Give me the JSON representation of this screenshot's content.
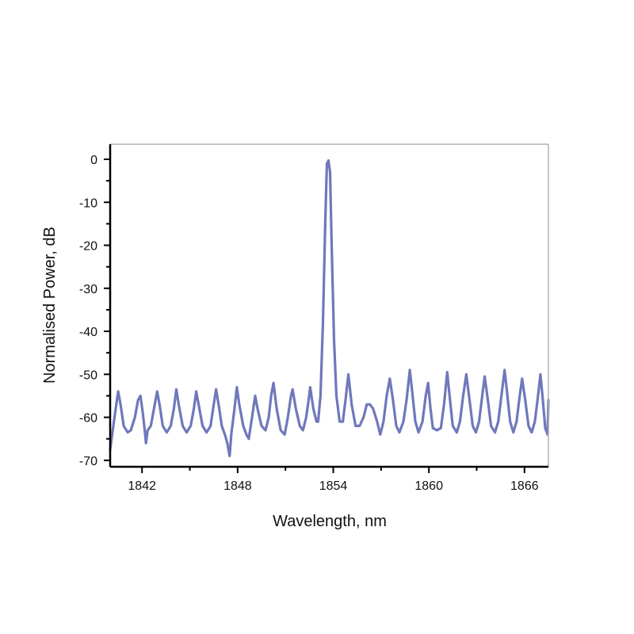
{
  "chart_data": {
    "type": "line",
    "xlabel": "Wavelength, nm",
    "ylabel": "Normalised Power, dB",
    "xlim": [
      1840.0,
      1867.5
    ],
    "ylim": [
      -71.5,
      3.5
    ],
    "x_ticks": [
      1842,
      1848,
      1854,
      1860,
      1866
    ],
    "x_tick_labels": [
      "1842",
      "1848",
      "1854",
      "1860",
      "1866"
    ],
    "x_minor_ticks": [
      1845,
      1851,
      1857,
      1863
    ],
    "y_ticks": [
      0,
      -10,
      -20,
      -30,
      -40,
      -50,
      -60,
      -70
    ],
    "y_tick_labels": [
      "0",
      "-10",
      "-20",
      "-30",
      "-40",
      "-50",
      "-60",
      "-70"
    ],
    "y_minor_ticks": [
      -5,
      -15,
      -25,
      -35,
      -45,
      -55,
      -65
    ],
    "line_color": "#6f78bb",
    "grid": false,
    "series": [
      {
        "points": [
          [
            1840.0,
            -67.5
          ],
          [
            1840.2,
            -62
          ],
          [
            1840.35,
            -58
          ],
          [
            1840.5,
            -54
          ],
          [
            1840.65,
            -57
          ],
          [
            1840.85,
            -62
          ],
          [
            1841.1,
            -63.5
          ],
          [
            1841.3,
            -63
          ],
          [
            1841.55,
            -60
          ],
          [
            1841.75,
            -56
          ],
          [
            1841.9,
            -55
          ],
          [
            1842.05,
            -59
          ],
          [
            1842.2,
            -64
          ],
          [
            1842.25,
            -66
          ],
          [
            1842.35,
            -63
          ],
          [
            1842.55,
            -62
          ],
          [
            1842.75,
            -58
          ],
          [
            1842.95,
            -54
          ],
          [
            1843.1,
            -57
          ],
          [
            1843.3,
            -62
          ],
          [
            1843.55,
            -63.5
          ],
          [
            1843.8,
            -62
          ],
          [
            1844.0,
            -58
          ],
          [
            1844.15,
            -53.5
          ],
          [
            1844.3,
            -57
          ],
          [
            1844.55,
            -62
          ],
          [
            1844.8,
            -63.5
          ],
          [
            1845.05,
            -62
          ],
          [
            1845.25,
            -58
          ],
          [
            1845.4,
            -54
          ],
          [
            1845.55,
            -57
          ],
          [
            1845.8,
            -62
          ],
          [
            1846.05,
            -63.5
          ],
          [
            1846.3,
            -62
          ],
          [
            1846.5,
            -57
          ],
          [
            1846.65,
            -53.5
          ],
          [
            1846.85,
            -58
          ],
          [
            1847.0,
            -62
          ],
          [
            1847.2,
            -64
          ],
          [
            1847.35,
            -66
          ],
          [
            1847.5,
            -69
          ],
          [
            1847.6,
            -64
          ],
          [
            1847.8,
            -58
          ],
          [
            1847.95,
            -53
          ],
          [
            1848.1,
            -57
          ],
          [
            1848.35,
            -62
          ],
          [
            1848.55,
            -64
          ],
          [
            1848.7,
            -65
          ],
          [
            1848.9,
            -60
          ],
          [
            1849.1,
            -55
          ],
          [
            1849.25,
            -58
          ],
          [
            1849.5,
            -62
          ],
          [
            1849.75,
            -63
          ],
          [
            1849.95,
            -60
          ],
          [
            1850.1,
            -55
          ],
          [
            1850.25,
            -52
          ],
          [
            1850.45,
            -58
          ],
          [
            1850.7,
            -63
          ],
          [
            1850.95,
            -64
          ],
          [
            1851.15,
            -60
          ],
          [
            1851.35,
            -55
          ],
          [
            1851.45,
            -53.5
          ],
          [
            1851.65,
            -58
          ],
          [
            1851.9,
            -62
          ],
          [
            1852.1,
            -63
          ],
          [
            1852.3,
            -60
          ],
          [
            1852.45,
            -56
          ],
          [
            1852.55,
            -53
          ],
          [
            1852.75,
            -58
          ],
          [
            1852.95,
            -61
          ],
          [
            1853.05,
            -61
          ],
          [
            1853.2,
            -55
          ],
          [
            1853.35,
            -38
          ],
          [
            1853.5,
            -14
          ],
          [
            1853.6,
            -1
          ],
          [
            1853.7,
            -0.3
          ],
          [
            1853.8,
            -3
          ],
          [
            1853.9,
            -20
          ],
          [
            1854.05,
            -42
          ],
          [
            1854.2,
            -55
          ],
          [
            1854.4,
            -61
          ],
          [
            1854.6,
            -61
          ],
          [
            1854.8,
            -55
          ],
          [
            1854.95,
            -50
          ],
          [
            1855.15,
            -57
          ],
          [
            1855.4,
            -62
          ],
          [
            1855.65,
            -62
          ],
          [
            1855.9,
            -60
          ],
          [
            1856.1,
            -57
          ],
          [
            1856.3,
            -57
          ],
          [
            1856.5,
            -58
          ],
          [
            1856.75,
            -61
          ],
          [
            1856.95,
            -64
          ],
          [
            1857.15,
            -61
          ],
          [
            1857.35,
            -55
          ],
          [
            1857.55,
            -51
          ],
          [
            1857.75,
            -56
          ],
          [
            1857.95,
            -62
          ],
          [
            1858.15,
            -63.5
          ],
          [
            1858.4,
            -61
          ],
          [
            1858.6,
            -56
          ],
          [
            1858.8,
            -49
          ],
          [
            1858.95,
            -54
          ],
          [
            1859.15,
            -61
          ],
          [
            1859.35,
            -63.5
          ],
          [
            1859.6,
            -61
          ],
          [
            1859.8,
            -55
          ],
          [
            1859.95,
            -52
          ],
          [
            1860.1,
            -58
          ],
          [
            1860.25,
            -62.5
          ],
          [
            1860.5,
            -63
          ],
          [
            1860.75,
            -62.5
          ],
          [
            1860.95,
            -57
          ],
          [
            1861.15,
            -49.5
          ],
          [
            1861.3,
            -55
          ],
          [
            1861.5,
            -62
          ],
          [
            1861.75,
            -63.5
          ],
          [
            1861.95,
            -61
          ],
          [
            1862.15,
            -55
          ],
          [
            1862.35,
            -50
          ],
          [
            1862.55,
            -56
          ],
          [
            1862.75,
            -62
          ],
          [
            1862.95,
            -63.5
          ],
          [
            1863.15,
            -61
          ],
          [
            1863.35,
            -55
          ],
          [
            1863.5,
            -50.5
          ],
          [
            1863.7,
            -56
          ],
          [
            1863.9,
            -62
          ],
          [
            1864.15,
            -63.5
          ],
          [
            1864.35,
            -61
          ],
          [
            1864.55,
            -55
          ],
          [
            1864.75,
            -49
          ],
          [
            1864.9,
            -54
          ],
          [
            1865.1,
            -61
          ],
          [
            1865.3,
            -63.5
          ],
          [
            1865.5,
            -61
          ],
          [
            1865.7,
            -55
          ],
          [
            1865.85,
            -51
          ],
          [
            1866.05,
            -56
          ],
          [
            1866.25,
            -62
          ],
          [
            1866.45,
            -63.5
          ],
          [
            1866.65,
            -61
          ],
          [
            1866.85,
            -55
          ],
          [
            1867.0,
            -50
          ],
          [
            1867.15,
            -56
          ],
          [
            1867.3,
            -62.5
          ],
          [
            1867.45,
            -64
          ],
          [
            1867.5,
            -56
          ]
        ]
      }
    ]
  }
}
